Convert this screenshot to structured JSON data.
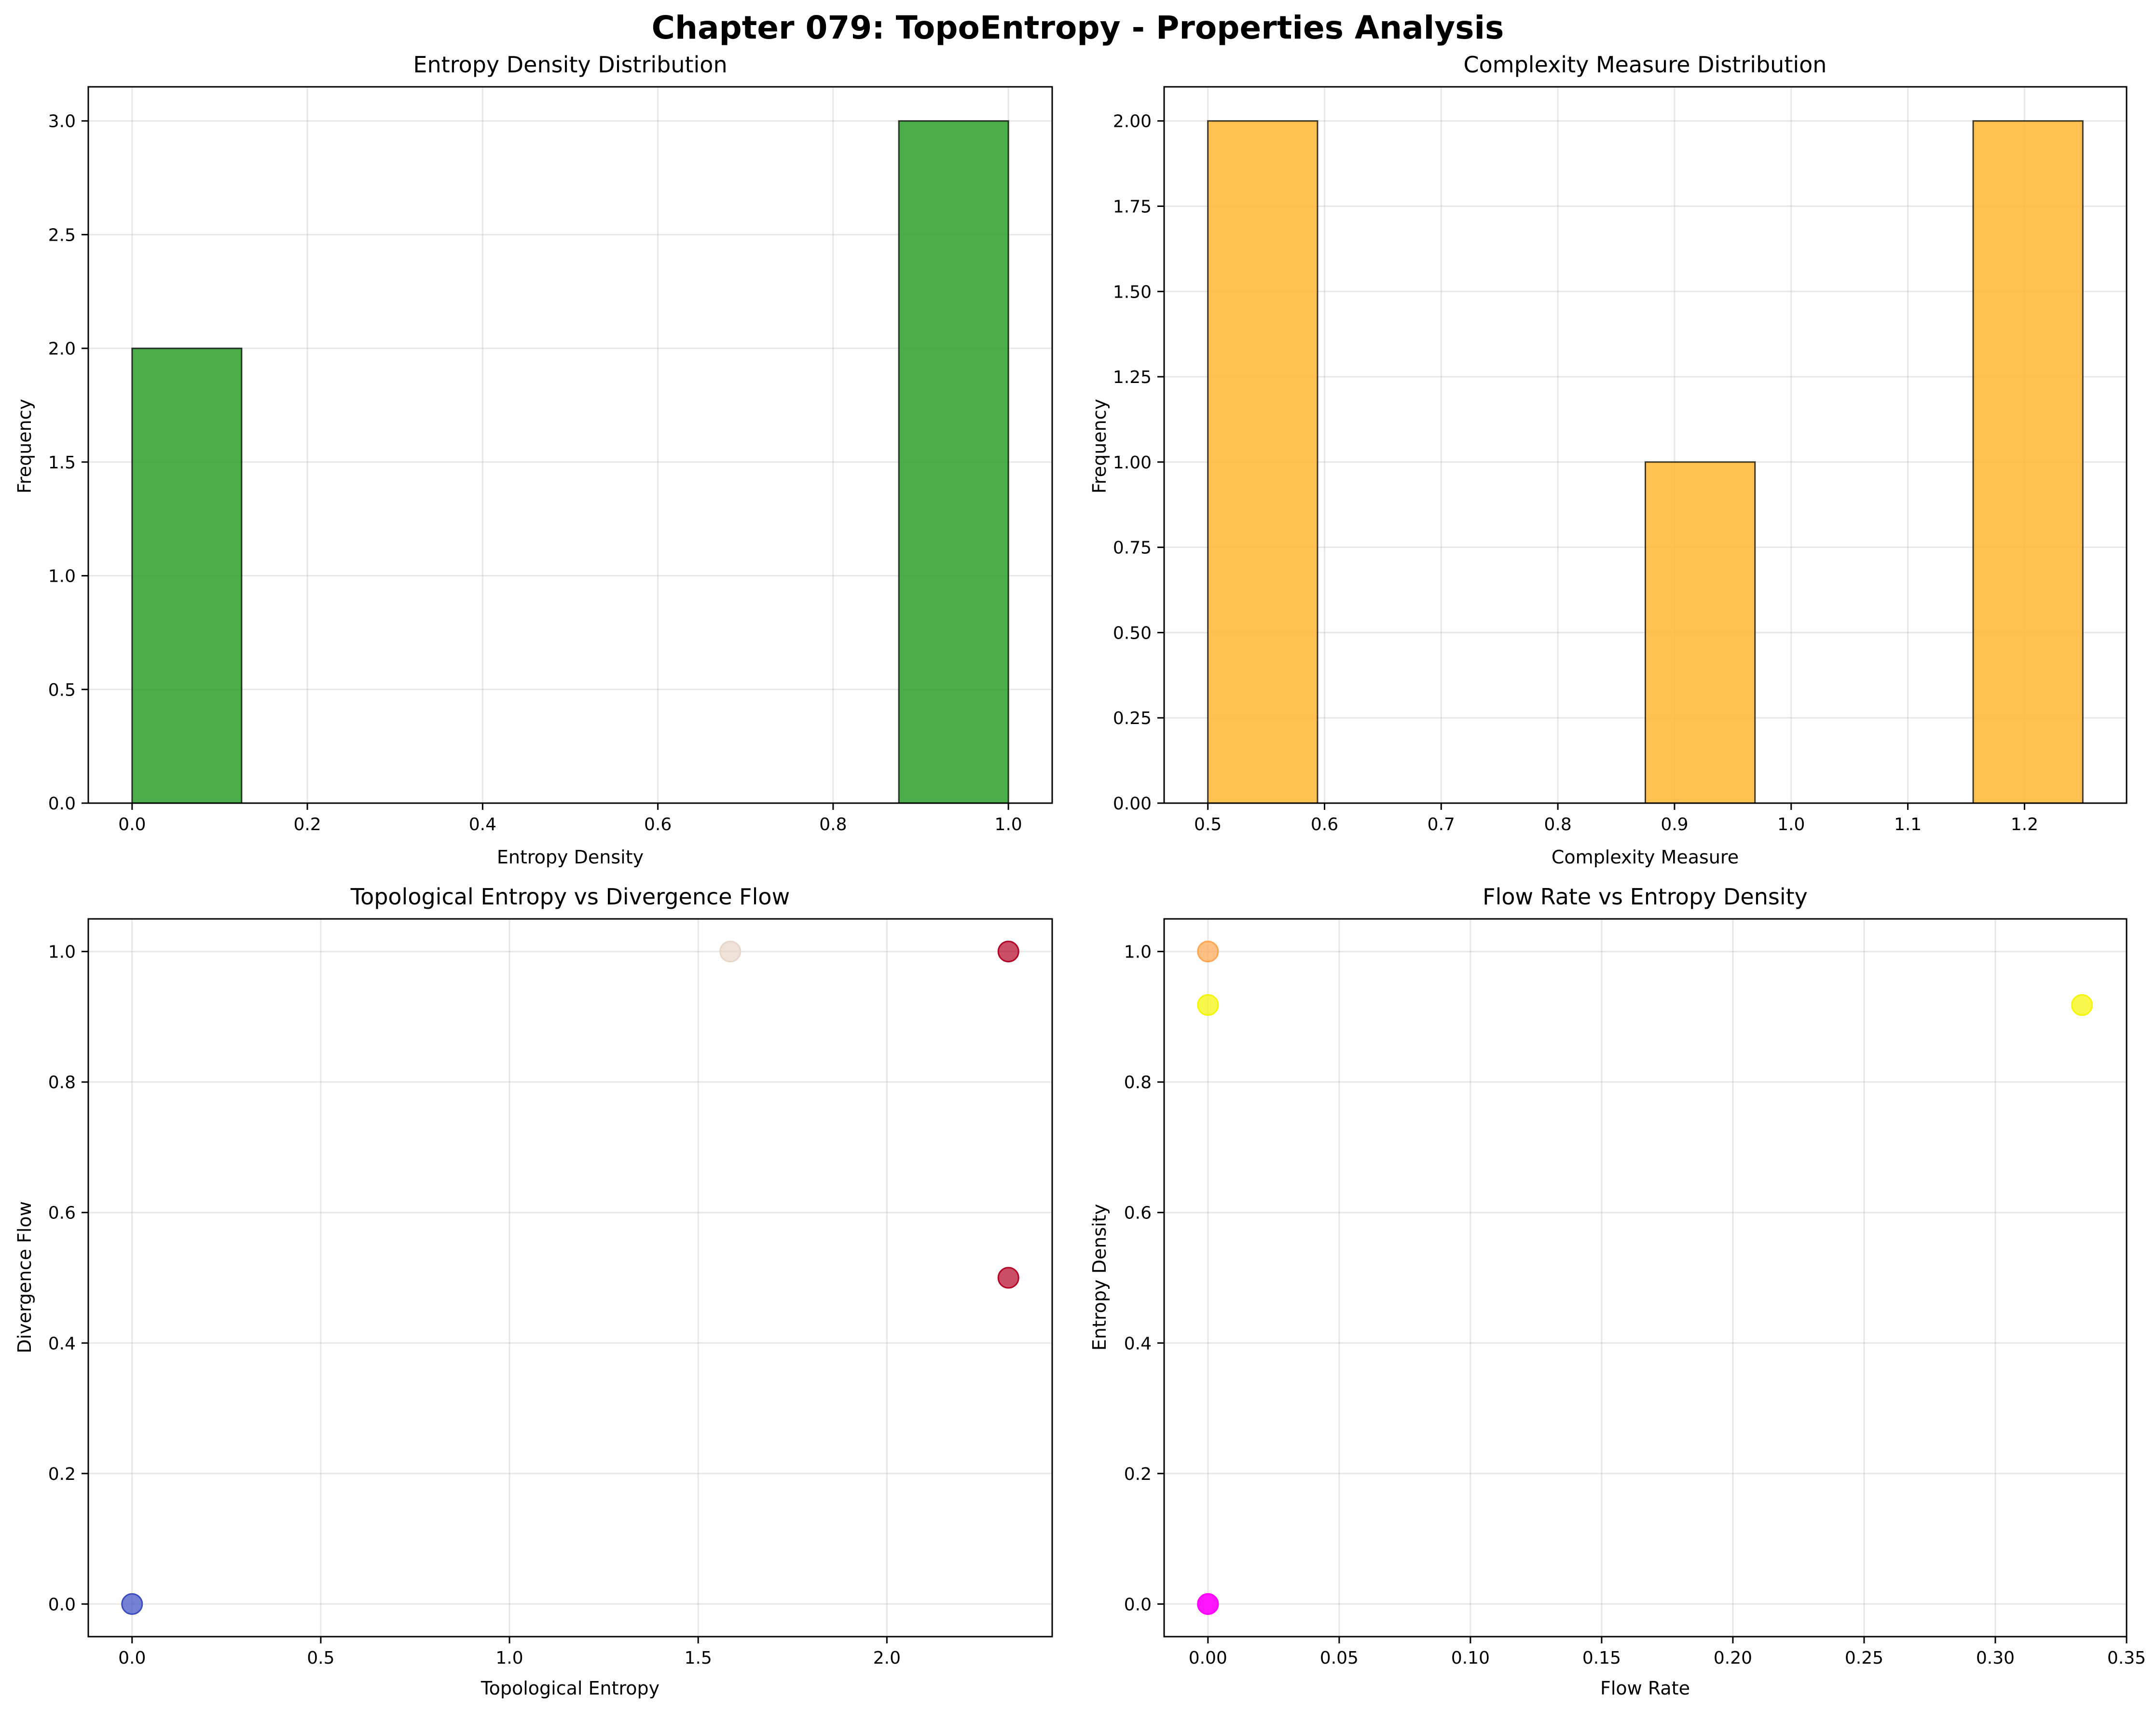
{
  "figure_title": "Chapter 079: TopoEntropy - Properties Analysis",
  "chart_data": [
    {
      "type": "bar",
      "title": "Entropy Density Distribution",
      "xlabel": "Entropy Density",
      "ylabel": "Frequency",
      "xlim": [
        -0.05,
        1.05
      ],
      "ylim": [
        0,
        3.15
      ],
      "xticks": [
        0.0,
        0.2,
        0.4,
        0.6,
        0.8,
        1.0
      ],
      "xtick_labels": [
        "0.0",
        "0.2",
        "0.4",
        "0.6",
        "0.8",
        "1.0"
      ],
      "yticks": [
        0.0,
        0.5,
        1.0,
        1.5,
        2.0,
        2.5,
        3.0
      ],
      "ytick_labels": [
        "0.0",
        "0.5",
        "1.0",
        "1.5",
        "2.0",
        "2.5",
        "3.0"
      ],
      "grid": true,
      "color": "#2ca02c",
      "bins": [
        {
          "x0": 0.0,
          "x1": 0.125,
          "value": 2
        },
        {
          "x0": 0.875,
          "x1": 1.0,
          "value": 3
        }
      ]
    },
    {
      "type": "bar",
      "title": "Complexity Measure Distribution",
      "xlabel": "Complexity Measure",
      "ylabel": "Frequency",
      "xlim": [
        0.4625,
        1.2875
      ],
      "ylim": [
        0,
        2.1
      ],
      "xticks": [
        0.5,
        0.6,
        0.7,
        0.8,
        0.9,
        1.0,
        1.1,
        1.2
      ],
      "xtick_labels": [
        "0.5",
        "0.6",
        "0.7",
        "0.8",
        "0.9",
        "1.0",
        "1.1",
        "1.2"
      ],
      "yticks": [
        0.0,
        0.25,
        0.5,
        0.75,
        1.0,
        1.25,
        1.5,
        1.75,
        2.0
      ],
      "ytick_labels": [
        "0.00",
        "0.25",
        "0.50",
        "0.75",
        "1.00",
        "1.25",
        "1.50",
        "1.75",
        "2.00"
      ],
      "grid": true,
      "color": "#ffb733",
      "bins": [
        {
          "x0": 0.5,
          "x1": 0.594,
          "value": 2
        },
        {
          "x0": 0.875,
          "x1": 0.969,
          "value": 1
        },
        {
          "x0": 1.156,
          "x1": 1.25,
          "value": 2
        }
      ]
    },
    {
      "type": "scatter",
      "title": "Topological Entropy vs Divergence Flow",
      "xlabel": "Topological Entropy",
      "ylabel": "Divergence Flow",
      "xlim": [
        -0.116,
        2.438
      ],
      "ylim": [
        -0.05,
        1.05
      ],
      "xticks": [
        0.0,
        0.5,
        1.0,
        1.5,
        2.0
      ],
      "xtick_labels": [
        "0.0",
        "0.5",
        "1.0",
        "1.5",
        "2.0"
      ],
      "yticks": [
        0.0,
        0.2,
        0.4,
        0.6,
        0.8,
        1.0
      ],
      "ytick_labels": [
        "0.0",
        "0.2",
        "0.4",
        "0.6",
        "0.8",
        "1.0"
      ],
      "grid": true,
      "points": [
        {
          "x": 0.0,
          "y": 0.0,
          "color": "#3b4cc0"
        },
        {
          "x": 1.585,
          "y": 1.0,
          "color": "#e8d5c9"
        },
        {
          "x": 2.322,
          "y": 1.0,
          "color": "#b40426"
        },
        {
          "x": 2.322,
          "y": 0.5,
          "color": "#b40426"
        }
      ]
    },
    {
      "type": "scatter",
      "title": "Flow Rate vs Entropy Density",
      "xlabel": "Flow Rate",
      "ylabel": "Entropy Density",
      "xlim": [
        -0.0167,
        0.35
      ],
      "ylim": [
        -0.05,
        1.05
      ],
      "xticks": [
        0.0,
        0.05,
        0.1,
        0.15,
        0.2,
        0.25,
        0.3,
        0.35
      ],
      "xtick_labels": [
        "0.00",
        "0.05",
        "0.10",
        "0.15",
        "0.20",
        "0.25",
        "0.30",
        "0.35"
      ],
      "yticks": [
        0.0,
        0.2,
        0.4,
        0.6,
        0.8,
        1.0
      ],
      "ytick_labels": [
        "0.0",
        "0.2",
        "0.4",
        "0.6",
        "0.8",
        "1.0"
      ],
      "grid": true,
      "points": [
        {
          "x": 0.0,
          "y": 1.0,
          "color": "#ffa54f"
        },
        {
          "x": 0.0,
          "y": 0.918,
          "color": "#f5f500"
        },
        {
          "x": 0.333,
          "y": 0.918,
          "color": "#f5f500"
        },
        {
          "x": 0.0,
          "y": 0.0,
          "color": "#ff00ff"
        },
        {
          "x": 0.0,
          "y": 0.0,
          "color": "#ff00ff"
        }
      ]
    }
  ]
}
